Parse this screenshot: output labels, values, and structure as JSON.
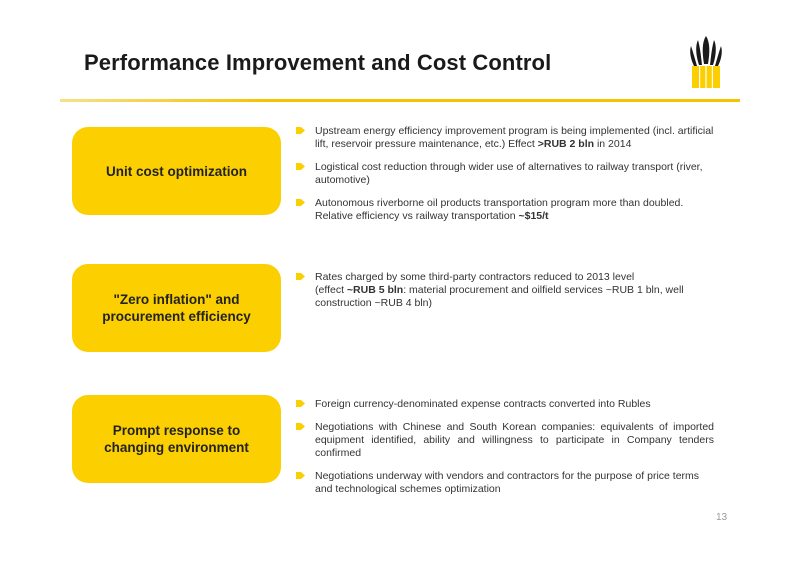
{
  "title": "Performance Improvement and Cost Control",
  "brand_color": "#fcd000",
  "page_number": "13",
  "sections": [
    {
      "label": "Unit cost optimization",
      "bullets": [
        {
          "text": "Upstream energy efficiency improvement program is being implemented (incl. artificial lift, reservoir pressure maintenance, etc.) Effect ",
          "bold": ">RUB 2 bln",
          "after": " in 2014"
        },
        {
          "text": "Logistical cost reduction through wider use of alternatives to railway transport (river, automotive)"
        },
        {
          "text": "Autonomous riverborne oil products transportation program more than doubled. Relative efficiency vs railway transportation ",
          "bold": "~$15/t",
          "after": ""
        }
      ]
    },
    {
      "label": "\"Zero inflation\" and procurement efficiency",
      "bullets": [
        {
          "text": "Rates charged by some third-party contractors reduced to 2013 level",
          "text2": "(effect ",
          "bold": "~RUB 5 bln",
          "after": ": material procurement and oilfield services ~RUB 1 bln, well construction ~RUB 4 bln)"
        }
      ]
    },
    {
      "label": "Prompt response to changing environment",
      "bullets": [
        {
          "text": "Foreign currency-denominated expense contracts converted into Rubles"
        },
        {
          "text": "Negotiations with Chinese and South Korean companies: equivalents of imported equipment identified, ability and willingness to participate in Company tenders confirmed"
        },
        {
          "text": "Negotiations underway with vendors and contractors for the purpose of price terms and technological schemes optimization"
        }
      ]
    }
  ]
}
